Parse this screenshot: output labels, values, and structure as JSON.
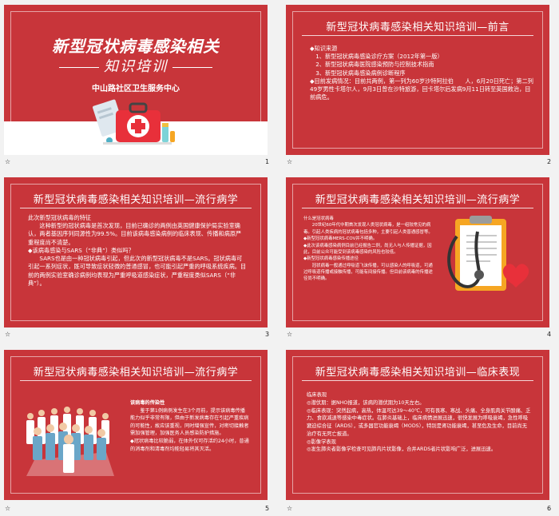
{
  "slides": [
    {
      "number": "1",
      "marker": "☆",
      "title": "新型冠状病毒感染相关",
      "subtitle": "知识培训",
      "org": "中山路社区卫生服务中心"
    },
    {
      "number": "2",
      "marker": "☆",
      "title": "新型冠状病毒感染相关知识培训—前言",
      "lines": [
        "◆知识来源",
        "　1、新型冠状病毒感染诊疗方案（2012年第一版）",
        "　2、新型冠状病毒医院感染预防与控制技术指南",
        "　3、新型冠状病毒感染病例诊断程序",
        "◆目前发病情况：目前共两例，第一列为60岁沙特阿拉伯　　人，6月20日死亡；第二列49岁男性卡塔尔人，9月3日曾在沙特旅游，回卡塔尔后发病9月11日转至英国救治，目前病危。"
      ]
    },
    {
      "number": "3",
      "marker": "☆",
      "title": "新型冠状病毒感染相关知识培训—流行病学",
      "lines": [
        "此次新型冠状病毒的特征",
        "　　这种新型的冠状病毒是首次发现，目前已确诊的两例由英国健康保护局实验室确认，两者基因序列同源性为99.5%。目前该病毒感染病例的临床表现、传播和病原严重程度尚不清楚。",
        "◆该病毒感染与SARS（“非典”）类似吗？",
        "　　SARS也是由一种冠状病毒引起，但此次的新型冠状病毒不是SARS。冠状病毒可引起一系列症状，既可导致症状轻微的普通感冒，也可能引起严重的呼吸系统疾病。目前的两例实验室确诊病例均表现为严重呼吸道感染症状，严重程度类似SARS（“非典”）。"
      ]
    },
    {
      "number": "4",
      "marker": "☆",
      "title": "新型冠状病毒感染相关知识培训—流行病学",
      "lines": [
        "什么是冠状病毒",
        "　　20世纪60年代中期首次发现人类冠状病毒，是一组较常见的病毒。引起人类疾病的冠状病毒包括多种，主要引起人类普通感冒等。",
        "◆新型冠状病毒MERS-COV并不明确。",
        "◆此次该病毒感染病例目前已经报告二例，尚无人与人传播证据，因此，目前公众可能受到该病毒感染的风险也较低。",
        "◆新型冠状病毒感染传播途径",
        "　　冠状病毒一般通过呼吸道飞沫传播，可以感染人的呼吸道，可通过呼吸道传播或接触传播，可能有间接传播。但目前该病毒的传播途径尚不明确。"
      ]
    },
    {
      "number": "5",
      "marker": "☆",
      "title": "新型冠状病毒感染相关知识培训—流行病学",
      "lines": [
        "该病毒的传染性",
        "　　鉴于第1例病例发生在3个月前，提示该病毒传播能力似乎非常有限，但由于新发病毒存在引起严重疾病的可能性，故应该重视，同时增强宣传，对密切接触者需加强管理，加强医务人员感染防护措施。",
        "◆冠状病毒比较脆弱，在体外仅可存活约24小时，普通的消毒剂和清毒剂均能轻易将其灭活。"
      ]
    },
    {
      "number": "6",
      "marker": "☆",
      "title": "新型冠状病毒感染相关知识培训—临床表现",
      "lines": [
        "临床表现",
        "◎潜伏期：据NHO报道，该病的潜伏期为10天左右。",
        "◎临床表现：突然起病，高热，体温可达39～40℃，可有畏寒、寒战、头痛、全身肌肉关节酸痛、乏力、食欲减退等感染中毒症状。在肺炎基础上，临床病情进展迅速，很快发展为呼吸衰竭，急性呼吸窘迫综合征（ARDS），或多器官功能衰竭（MODS），特别是肾功能衰竭，甚至危及生命，目前尚无治疗有无死亡报道。",
        "◎影像学表现",
        "◎发生肺炎者影像学检查可见肺内片状影像，合并ARDS者片状影响广泛，进展迅速。"
      ]
    }
  ],
  "colors": {
    "slide_background": "#c8353a",
    "slide_text": "#ffffff",
    "panel_background": "#f2f2f2"
  }
}
